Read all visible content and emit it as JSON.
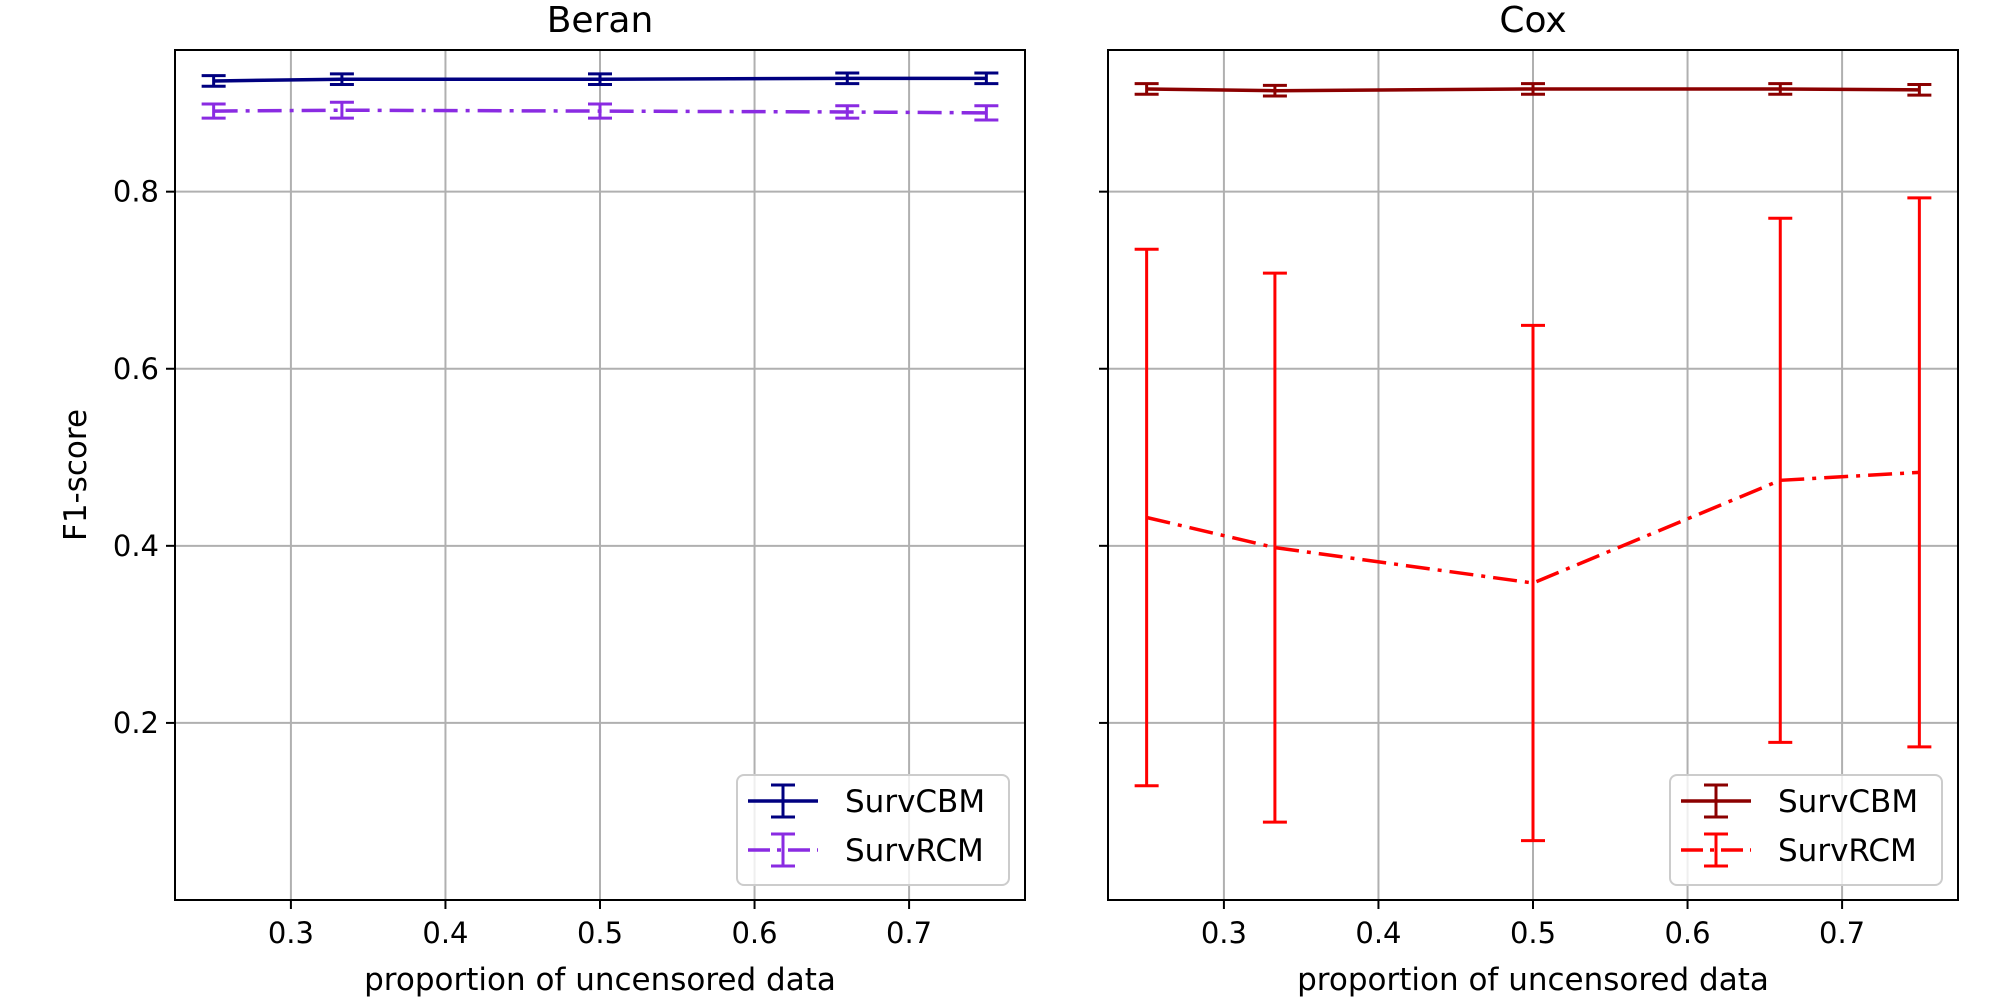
{
  "chart_data": [
    {
      "type": "line",
      "title": "Beran",
      "xlabel": "proportion of uncensored data",
      "ylabel": "F1-score",
      "xlim": [
        0.225,
        0.775
      ],
      "ylim": [
        0.0,
        0.96
      ],
      "grid": true,
      "show_ylabel": true,
      "show_ytick_labels": true,
      "legend_position": "lower-right",
      "xticks": [
        0.3,
        0.4,
        0.5,
        0.6,
        0.7
      ],
      "xtick_labels": [
        "0.3",
        "0.4",
        "0.5",
        "0.6",
        "0.7"
      ],
      "yticks": [
        0.2,
        0.4,
        0.6,
        0.8
      ],
      "ytick_labels": [
        "0.2",
        "0.4",
        "0.6",
        "0.8"
      ],
      "x": [
        0.25,
        0.333,
        0.5,
        0.66,
        0.75
      ],
      "series": [
        {
          "name": "SurvCBM",
          "color": "#000080",
          "line_style": "solid",
          "values": [
            0.925,
            0.927,
            0.927,
            0.928,
            0.928
          ],
          "errors": [
            0.006,
            0.006,
            0.006,
            0.006,
            0.006
          ]
        },
        {
          "name": "SurvRCM",
          "color": "#8a2be2",
          "line_style": "dashdot",
          "values": [
            0.891,
            0.892,
            0.891,
            0.89,
            0.889
          ],
          "errors": [
            0.008,
            0.009,
            0.008,
            0.007,
            0.008
          ]
        }
      ]
    },
    {
      "type": "line",
      "title": "Cox",
      "xlabel": "proportion of uncensored data",
      "ylabel": "",
      "xlim": [
        0.225,
        0.775
      ],
      "ylim": [
        0.0,
        0.96
      ],
      "grid": true,
      "show_ylabel": false,
      "show_ytick_labels": false,
      "legend_position": "lower-right",
      "xticks": [
        0.3,
        0.4,
        0.5,
        0.6,
        0.7
      ],
      "xtick_labels": [
        "0.3",
        "0.4",
        "0.5",
        "0.6",
        "0.7"
      ],
      "yticks": [
        0.2,
        0.4,
        0.6,
        0.8
      ],
      "ytick_labels": [
        "0.2",
        "0.4",
        "0.6",
        "0.8"
      ],
      "x": [
        0.25,
        0.333,
        0.5,
        0.66,
        0.75
      ],
      "series": [
        {
          "name": "SurvCBM",
          "color": "#8b0000",
          "line_style": "solid",
          "values": [
            0.916,
            0.914,
            0.916,
            0.916,
            0.915
          ],
          "errors": [
            0.006,
            0.006,
            0.006,
            0.006,
            0.006
          ]
        },
        {
          "name": "SurvRCM",
          "color": "#ff0000",
          "line_style": "dashdot",
          "values": [
            0.432,
            0.398,
            0.358,
            0.474,
            0.483
          ],
          "errors": [
            0.303,
            0.31,
            0.291,
            0.296,
            0.31
          ]
        }
      ]
    }
  ]
}
